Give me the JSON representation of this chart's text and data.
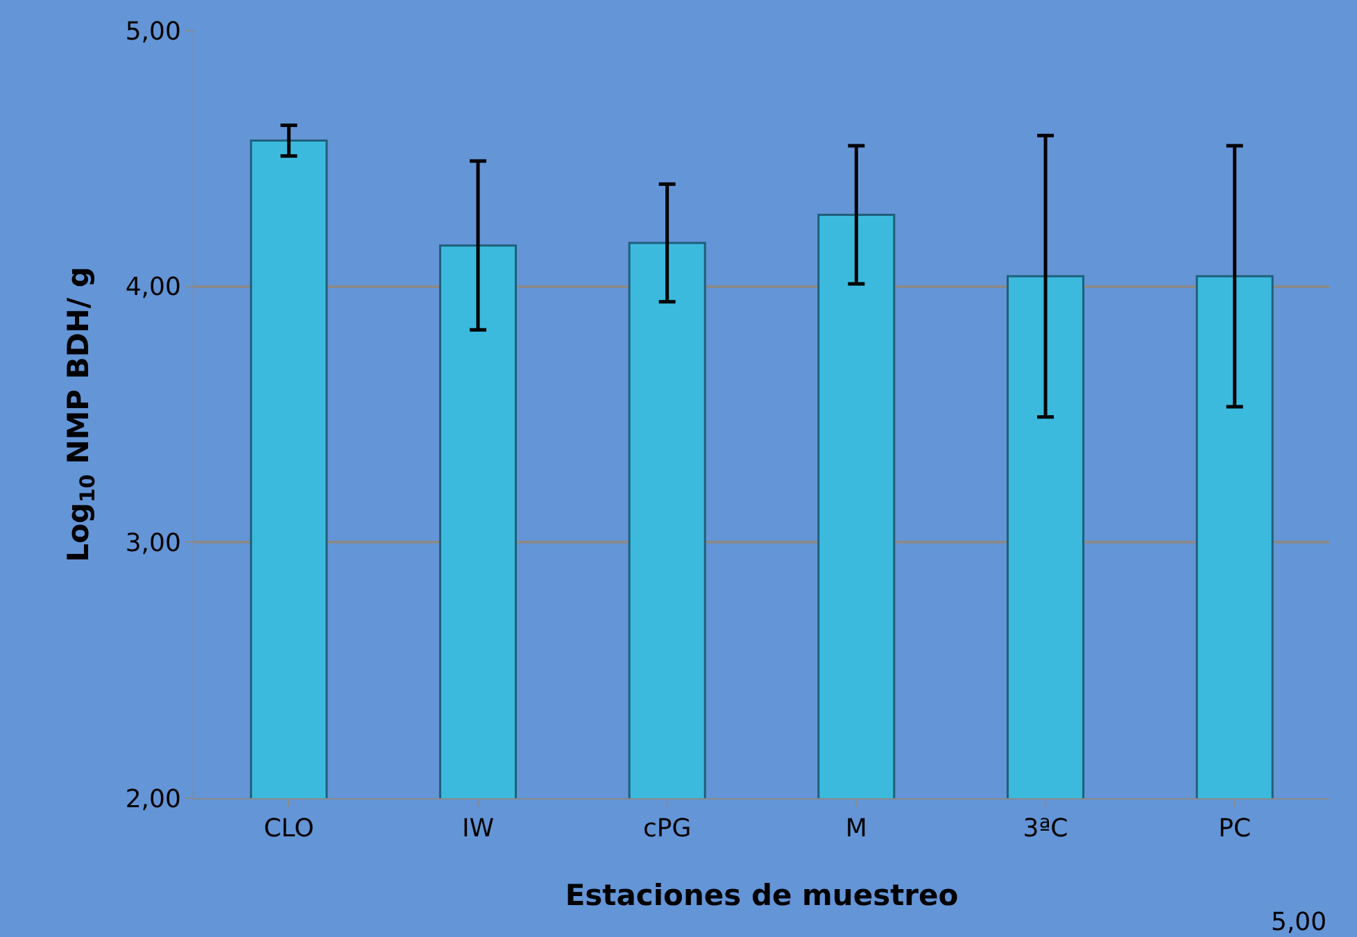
{
  "chart_data": {
    "type": "bar",
    "xlabel": "Estaciones de muestreo",
    "ylabel": "Log$_{10}$ NMP BDH/ g",
    "categories": [
      "CLO",
      "IW",
      "cPG",
      "M",
      "3ªC",
      "PC"
    ],
    "values": [
      4.57,
      4.16,
      4.17,
      4.28,
      4.04,
      4.04
    ],
    "errors": [
      0.06,
      0.33,
      0.23,
      0.27,
      0.55,
      0.51
    ],
    "color": "#3bbade",
    "ylim": [
      2,
      5
    ],
    "yticks": [
      {
        "value": 2,
        "label": "2,00"
      },
      {
        "value": 3,
        "label": "3,00"
      },
      {
        "value": 4,
        "label": "4,00"
      },
      {
        "value": 5,
        "label": "5,00"
      }
    ],
    "grid": "y",
    "annotations": [
      "5,00"
    ]
  }
}
